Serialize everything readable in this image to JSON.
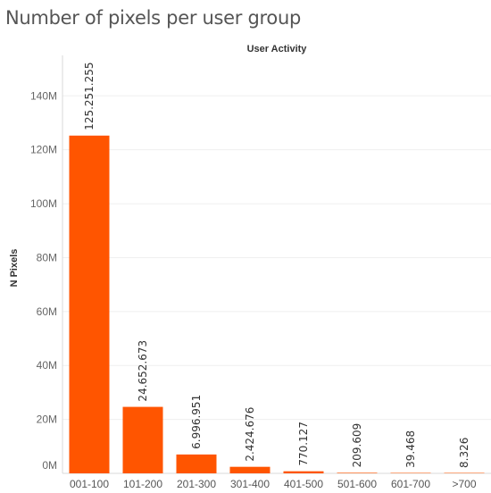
{
  "page": {
    "title": "Number of pixels per user group"
  },
  "chart_data": {
    "type": "bar",
    "title": "User Activity",
    "xlabel": "",
    "ylabel": "N Pixels",
    "categories": [
      "001-100",
      "101-200",
      "201-300",
      "301-400",
      "401-500",
      "501-600",
      "601-700",
      ">700"
    ],
    "values": [
      125251255,
      24652673,
      6996951,
      2424676,
      770127,
      209609,
      39468,
      8326
    ],
    "value_labels": [
      "125.251.255",
      "24.652.673",
      "6.996.951",
      "2.424.676",
      "770.127",
      "209.609",
      "39.468",
      "8.326"
    ],
    "yticks": [
      0,
      20000000,
      40000000,
      60000000,
      80000000,
      100000000,
      120000000,
      140000000
    ],
    "ytick_labels": [
      "0M",
      "20M",
      "40M",
      "60M",
      "80M",
      "100M",
      "120M",
      "140M"
    ],
    "ylim": [
      0,
      155000000
    ],
    "grid": true,
    "color": "#FF5500"
  }
}
